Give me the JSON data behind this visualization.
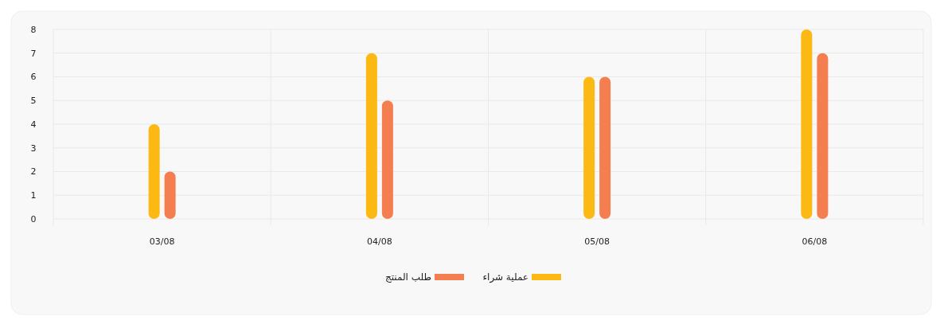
{
  "chart_data": {
    "type": "bar",
    "categories": [
      "03/08",
      "04/08",
      "05/08",
      "06/08"
    ],
    "series": [
      {
        "name": "عملية شراء",
        "color": "#fcb813",
        "values": [
          4,
          7,
          6,
          8
        ]
      },
      {
        "name": "طلب المنتج",
        "color": "#f47e4f",
        "values": [
          2,
          5,
          6,
          7
        ]
      }
    ],
    "ylim": [
      0,
      8
    ],
    "yticks": [
      0,
      1,
      2,
      3,
      4,
      5,
      6,
      7,
      8
    ],
    "grid": true,
    "legend": "bottom"
  }
}
